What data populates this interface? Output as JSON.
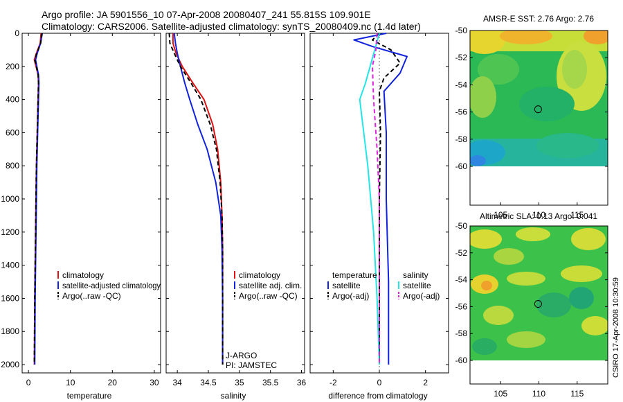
{
  "header": {
    "line1": "Argo profile: JA 5901556_10 07-Apr-2008 20080407_241 55.815S 109.901E",
    "line2": "Climatology: CARS2006. Satellite-adjusted climatology: synTS_20080409.nc (1.4d later)"
  },
  "footer": {
    "stamp": "CSIRO 17-Apr-2008 10:30:59"
  },
  "colors": {
    "red": "#dd1111",
    "blue": "#1122dd",
    "black": "#000000",
    "cyan": "#22e5e5",
    "magenta": "#dd22dd"
  },
  "chart_data": [
    {
      "id": "temperature",
      "type": "line",
      "title": "",
      "xlabel": "temperature",
      "ylabel": "",
      "xlim": [
        -1.5,
        31.5
      ],
      "ylim": [
        2050,
        0
      ],
      "xticks": [
        0,
        10,
        20,
        30
      ],
      "yticks": [
        0,
        200,
        400,
        600,
        800,
        1000,
        1200,
        1400,
        1600,
        1800,
        2000
      ],
      "legend": [
        "climatology",
        "satellite-adjusted climatology",
        "Argo(..raw -QC)"
      ],
      "series": [
        {
          "name": "climatology",
          "color": "red",
          "style": "solid",
          "x": [
            3.0,
            2.8,
            1.9,
            1.4,
            1.8,
            2.3,
            2.4,
            2.3,
            2.1,
            1.9,
            1.7,
            1.5,
            1.4
          ],
          "y": [
            0,
            60,
            120,
            160,
            200,
            250,
            300,
            400,
            600,
            800,
            1200,
            1600,
            2000
          ]
        },
        {
          "name": "satellite-adjusted climatology",
          "color": "blue",
          "style": "solid",
          "x": [
            3.3,
            2.9,
            2.1,
            1.7,
            2.0,
            2.4,
            2.5,
            2.4,
            2.2,
            2.0,
            1.8,
            1.6,
            1.5
          ],
          "y": [
            0,
            60,
            120,
            160,
            200,
            250,
            300,
            400,
            600,
            800,
            1200,
            1600,
            2000
          ]
        },
        {
          "name": "Argo(..raw -QC)",
          "color": "black",
          "style": "dashed",
          "x": [
            3.2,
            2.9,
            2.0,
            1.5,
            1.9,
            2.3,
            2.4,
            2.3,
            2.1,
            1.9,
            1.7,
            1.5,
            1.4
          ],
          "y": [
            0,
            60,
            120,
            160,
            200,
            250,
            300,
            400,
            600,
            800,
            1200,
            1600,
            2000
          ]
        }
      ]
    },
    {
      "id": "salinity",
      "type": "line",
      "title": "",
      "xlabel": "salinity",
      "ylabel": "",
      "xlim": [
        33.82,
        36.05
      ],
      "ylim": [
        2050,
        0
      ],
      "xticks": [
        34,
        34.5,
        35,
        35.5,
        36
      ],
      "xticklabels": [
        "34",
        "34.5",
        "35",
        "35.5",
        "36"
      ],
      "legend": [
        "climatology",
        "satellite adj. clim.",
        "Argo(..raw -QC)"
      ],
      "annotations": [
        "J-ARGO",
        "PI: JAMSTEC"
      ],
      "series": [
        {
          "name": "climatology",
          "color": "red",
          "style": "solid",
          "x": [
            33.93,
            33.93,
            33.98,
            34.08,
            34.25,
            34.43,
            34.57,
            34.65,
            34.7,
            34.72,
            34.73,
            34.73,
            34.73
          ],
          "y": [
            0,
            60,
            120,
            200,
            300,
            400,
            550,
            700,
            900,
            1100,
            1300,
            1600,
            2000
          ]
        },
        {
          "name": "satellite adj. clim.",
          "color": "blue",
          "style": "solid",
          "x": [
            33.95,
            33.97,
            34.0,
            34.05,
            34.12,
            34.2,
            34.33,
            34.48,
            34.62,
            34.7,
            34.72,
            34.73,
            34.73
          ],
          "y": [
            0,
            60,
            120,
            200,
            300,
            400,
            550,
            700,
            900,
            1100,
            1300,
            1600,
            2000
          ]
        },
        {
          "name": "Argo(..raw -QC)",
          "color": "black",
          "style": "dashed",
          "x": [
            33.87,
            33.88,
            33.95,
            34.05,
            34.22,
            34.38,
            34.53,
            34.63,
            34.69,
            34.72,
            34.73,
            34.73,
            34.73
          ],
          "y": [
            0,
            60,
            120,
            200,
            300,
            400,
            550,
            700,
            900,
            1100,
            1300,
            1600,
            2000
          ]
        }
      ]
    },
    {
      "id": "difference",
      "type": "line",
      "title": "",
      "xlabel": "difference from climatology",
      "ylabel": "",
      "xlim": [
        -3.0,
        3.0
      ],
      "ylim": [
        2050,
        0
      ],
      "xticks": [
        -2,
        0,
        2
      ],
      "legend_left": [
        "temperature",
        "satellite",
        "Argo(-adj)"
      ],
      "legend_right": [
        "salinity",
        "satellite",
        "Argo(-adj)"
      ],
      "series": [
        {
          "name": "temperature satellite",
          "color": "blue",
          "style": "solid",
          "x": [
            0.3,
            -1.1,
            -0.3,
            1.2,
            0.9,
            0.2,
            0.3,
            0.3,
            0.4,
            0.4
          ],
          "y": [
            0,
            40,
            80,
            140,
            240,
            350,
            600,
            1000,
            1500,
            2000
          ]
        },
        {
          "name": "temperature Argo(-adj)",
          "color": "black",
          "style": "dashed",
          "x": [
            0.0,
            -0.3,
            0.5,
            0.9,
            0.2,
            0.0,
            0.05,
            0.0,
            0.0,
            0.0
          ],
          "y": [
            0,
            40,
            100,
            180,
            270,
            350,
            600,
            1000,
            1500,
            2000
          ]
        },
        {
          "name": "salinity satellite",
          "color": "cyan",
          "style": "solid",
          "x": [
            0.0,
            -0.3,
            -0.6,
            -0.85,
            -0.5,
            -0.25,
            -0.1,
            0.0
          ],
          "y": [
            0,
            150,
            300,
            400,
            800,
            1200,
            1600,
            2000
          ]
        },
        {
          "name": "salinity Argo(-adj)",
          "color": "magenta",
          "style": "dashed",
          "x": [
            -0.1,
            -0.15,
            -0.3,
            -0.25,
            -0.1,
            0.0,
            0.0,
            0.0
          ],
          "y": [
            0,
            100,
            200,
            400,
            700,
            1000,
            1500,
            2000
          ]
        }
      ]
    },
    {
      "id": "sst_map",
      "type": "heatmap",
      "title": "AMSR-E SST: 2.76 Argo: 2.76",
      "xlim": [
        101,
        119
      ],
      "ylim": [
        -62,
        -50
      ],
      "xticks": [
        105,
        110,
        115
      ],
      "yticks": [
        -50,
        -52,
        -54,
        -56,
        -58,
        -60
      ],
      "marker": {
        "lon": 109.9,
        "lat": -55.8
      }
    },
    {
      "id": "sla_map",
      "type": "heatmap",
      "title": "Altimetric SLA: 0.13 Argo: 0.041",
      "xlim": [
        101,
        119
      ],
      "ylim": [
        -62,
        -50
      ],
      "xticks": [
        105,
        110,
        115
      ],
      "yticks": [
        -50,
        -52,
        -54,
        -56,
        -58,
        -60
      ],
      "marker": {
        "lon": 109.9,
        "lat": -55.8
      }
    }
  ]
}
